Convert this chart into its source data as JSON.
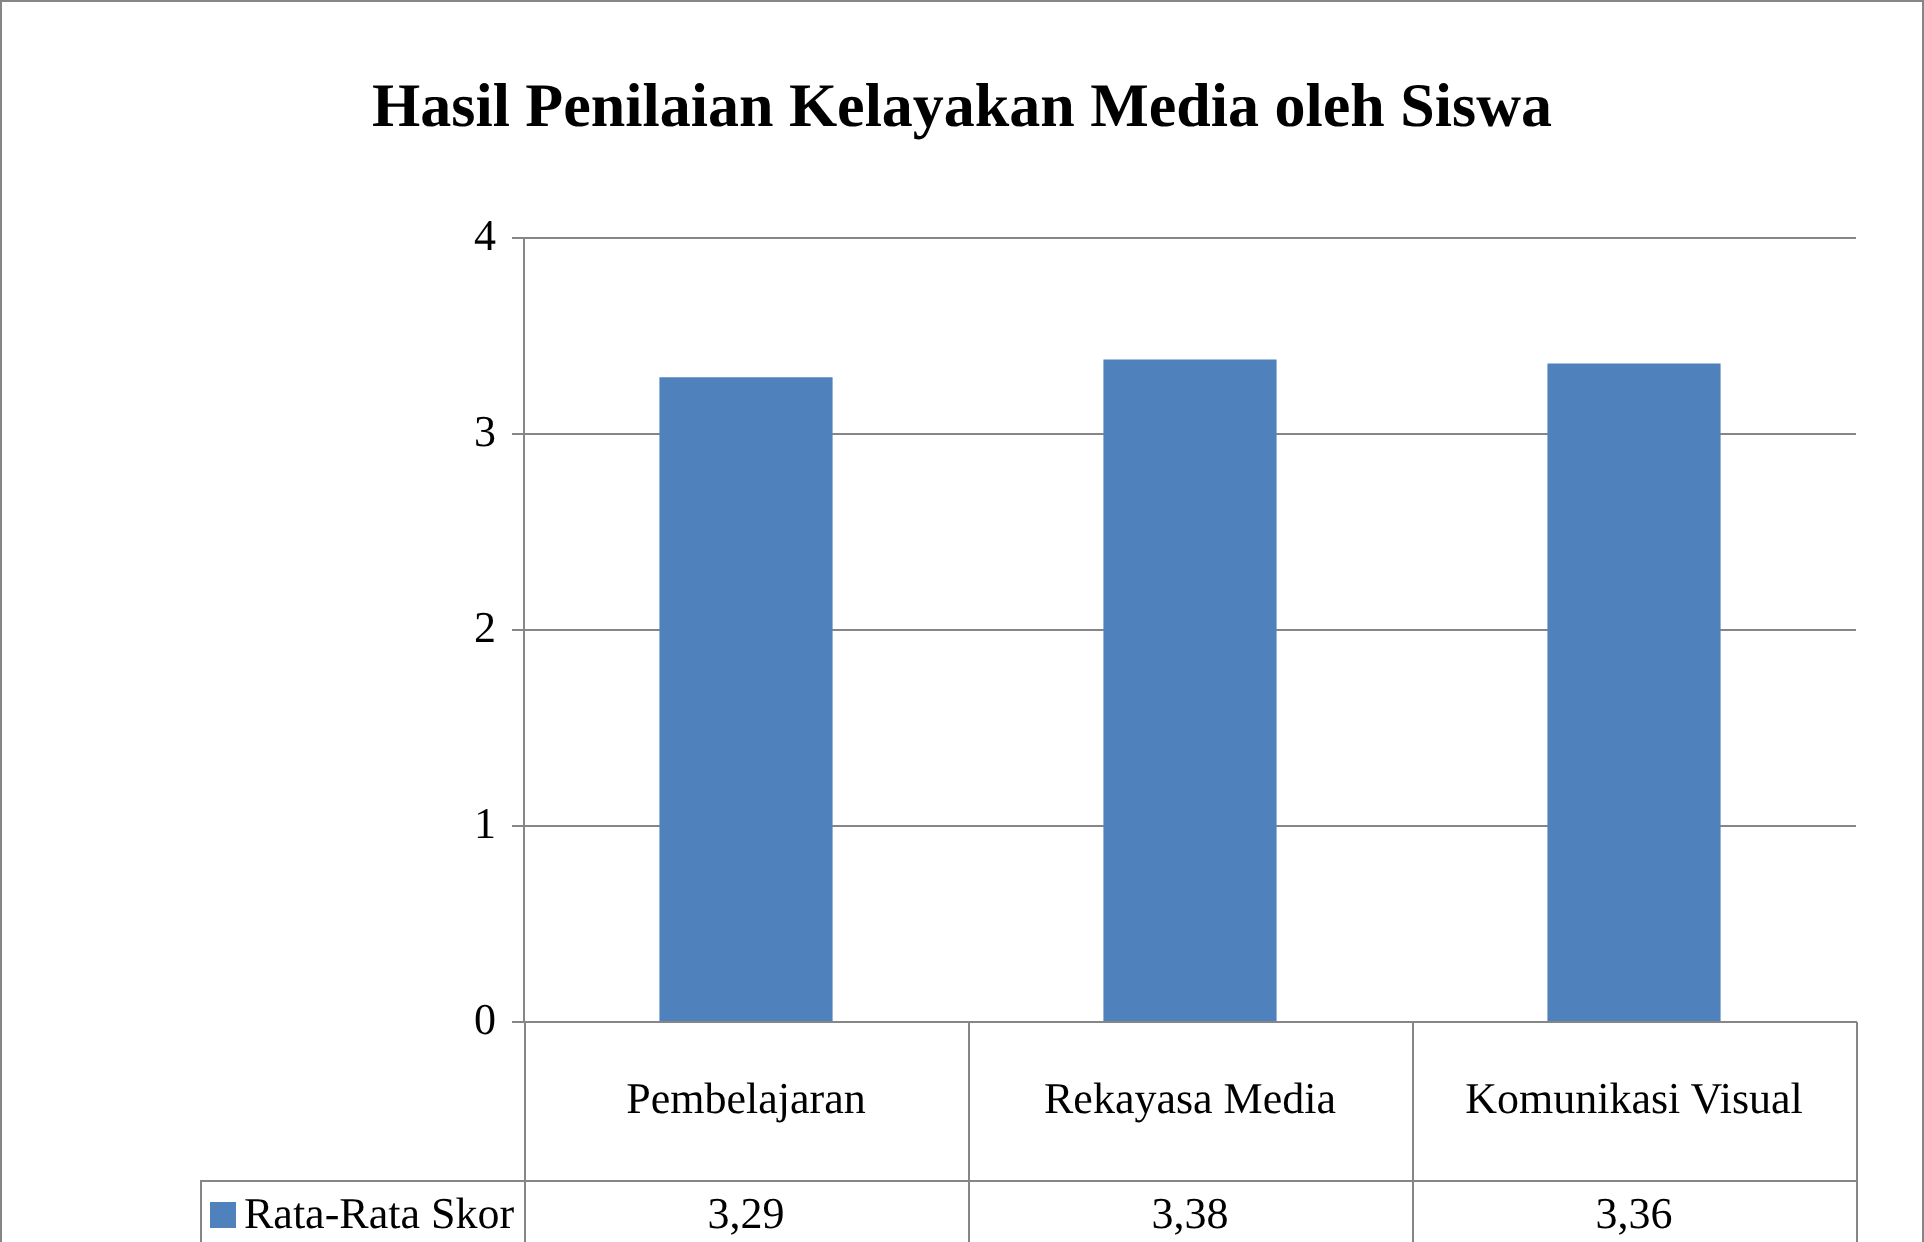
{
  "chart_data": {
    "type": "bar",
    "title": "Hasil Penilaian Kelayakan Media oleh Siswa",
    "categories": [
      "Pembelajaran",
      "Rekayasa Media",
      "Komunikasi Visual"
    ],
    "series": [
      {
        "name": "Rata-Rata Skor",
        "color": "#4f81bd",
        "values": [
          3.29,
          3.38,
          3.36
        ],
        "value_labels": [
          "3,29",
          "3,38",
          "3,36"
        ]
      }
    ],
    "ylim": [
      0,
      4
    ],
    "yticks": [
      0,
      1,
      2,
      3,
      4
    ],
    "grid": "y",
    "legend": "bottom left"
  }
}
